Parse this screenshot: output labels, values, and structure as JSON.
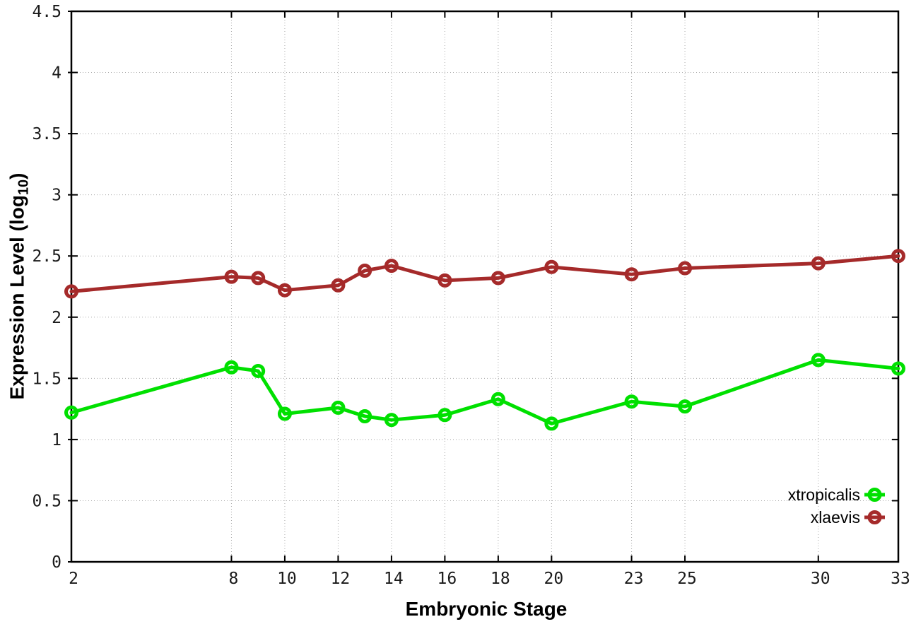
{
  "figure": {
    "background": "#ffffff",
    "border_color": "#000000",
    "grid_color": "#a8a8a8",
    "tick_label_color": "#1a1a1a"
  },
  "chart_data": {
    "type": "line",
    "title": "",
    "xlabel": "Embryonic Stage",
    "ylabel": "Expression Level (log10)",
    "ylabel_parts": {
      "main": "Expression Level (log",
      "sub": "10",
      "end": ")"
    },
    "xlim": [
      2,
      33
    ],
    "ylim": [
      0,
      4.5
    ],
    "xticks": [
      2,
      8,
      10,
      12,
      14,
      16,
      18,
      20,
      23,
      25,
      30,
      33
    ],
    "yticks": [
      0,
      0.5,
      1,
      1.5,
      2,
      2.5,
      3,
      3.5,
      4,
      4.5
    ],
    "grid": true,
    "legend_position": "bottom-right",
    "x": [
      2,
      8,
      9,
      10,
      12,
      13,
      14,
      16,
      18,
      20,
      23,
      25,
      30,
      33
    ],
    "series": [
      {
        "name": "xtropicalis",
        "color": "#00e000",
        "marker": "open-circle",
        "values": [
          1.22,
          1.59,
          1.56,
          1.21,
          1.26,
          1.19,
          1.16,
          1.2,
          1.33,
          1.13,
          1.31,
          1.27,
          1.65,
          1.58
        ]
      },
      {
        "name": "xlaevis",
        "color": "#a52a2a",
        "marker": "open-circle",
        "values": [
          2.21,
          2.33,
          2.32,
          2.22,
          2.26,
          2.38,
          2.42,
          2.3,
          2.32,
          2.41,
          2.35,
          2.4,
          2.44,
          2.5
        ]
      }
    ]
  }
}
